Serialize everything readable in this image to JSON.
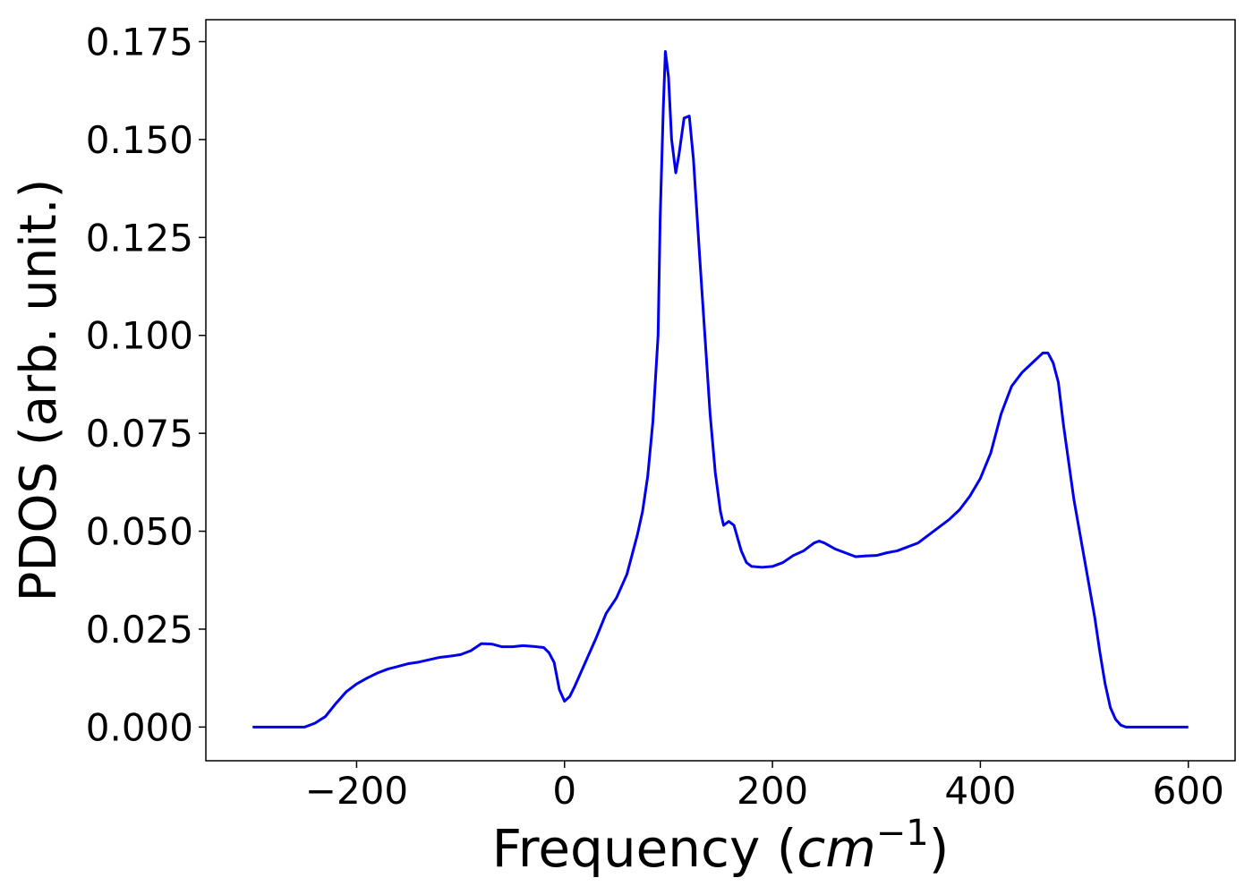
{
  "chart_data": {
    "type": "line",
    "xlabel": [
      "Frequency (",
      "cm",
      "−1",
      ")"
    ],
    "ylabel": "PDOS (arb. unit.)",
    "xlim": [
      -345,
      645
    ],
    "ylim": [
      -0.0086,
      0.1806
    ],
    "xticks": [
      {
        "value": -200,
        "label": "−200"
      },
      0,
      200,
      400,
      600
    ],
    "yticks": [
      {
        "value": 0,
        "label": "0.000"
      },
      {
        "value": 0.025,
        "label": "0.025"
      },
      {
        "value": 0.05,
        "label": "0.050"
      },
      {
        "value": 0.075,
        "label": "0.075"
      },
      {
        "value": 0.1,
        "label": "0.100"
      },
      {
        "value": 0.125,
        "label": "0.125"
      },
      {
        "value": 0.15,
        "label": "0.150"
      },
      {
        "value": 0.175,
        "label": "0.175"
      }
    ],
    "grid": false,
    "x": [
      -300,
      -250,
      -240,
      -230,
      -220,
      -210,
      -200,
      -190,
      -180,
      -170,
      -160,
      -150,
      -140,
      -130,
      -120,
      -110,
      -100,
      -90,
      -80,
      -70,
      -60,
      -50,
      -40,
      -30,
      -20,
      -15,
      -10,
      -5,
      0,
      5,
      10,
      20,
      30,
      40,
      50,
      60,
      65,
      70,
      75,
      80,
      85,
      90,
      92,
      95,
      97,
      100,
      103,
      107,
      110,
      115,
      120,
      124,
      130,
      135,
      140,
      145,
      150,
      153,
      158,
      163,
      170,
      175,
      180,
      190,
      200,
      210,
      220,
      230,
      240,
      245,
      250,
      260,
      270,
      280,
      290,
      300,
      310,
      320,
      330,
      340,
      350,
      360,
      370,
      380,
      390,
      400,
      410,
      420,
      430,
      440,
      450,
      460,
      465,
      470,
      475,
      480,
      490,
      500,
      510,
      515,
      520,
      525,
      530,
      535,
      540,
      600
    ],
    "series": [
      {
        "color": "#0000ee",
        "values": [
          0,
          0,
          0.001,
          0.0027,
          0.006,
          0.009,
          0.011,
          0.0125,
          0.0138,
          0.0148,
          0.0155,
          0.0162,
          0.0166,
          0.0172,
          0.0178,
          0.0181,
          0.0185,
          0.0195,
          0.0213,
          0.0212,
          0.0205,
          0.0205,
          0.0208,
          0.0206,
          0.0203,
          0.019,
          0.0165,
          0.0096,
          0.0066,
          0.0078,
          0.0105,
          0.0165,
          0.0225,
          0.029,
          0.033,
          0.039,
          0.044,
          0.049,
          0.055,
          0.064,
          0.078,
          0.1,
          0.13,
          0.158,
          0.1725,
          0.166,
          0.15,
          0.1415,
          0.146,
          0.1555,
          0.156,
          0.145,
          0.12,
          0.1,
          0.08,
          0.065,
          0.055,
          0.0515,
          0.0525,
          0.0515,
          0.045,
          0.042,
          0.041,
          0.0408,
          0.041,
          0.042,
          0.0438,
          0.045,
          0.047,
          0.0475,
          0.047,
          0.0455,
          0.0445,
          0.0435,
          0.0437,
          0.0438,
          0.0445,
          0.045,
          0.046,
          0.047,
          0.049,
          0.051,
          0.053,
          0.0555,
          0.059,
          0.0635,
          0.07,
          0.08,
          0.087,
          0.0905,
          0.093,
          0.0955,
          0.0955,
          0.093,
          0.088,
          0.077,
          0.058,
          0.043,
          0.028,
          0.019,
          0.011,
          0.005,
          0.002,
          0.0005,
          0,
          0
        ]
      }
    ]
  }
}
